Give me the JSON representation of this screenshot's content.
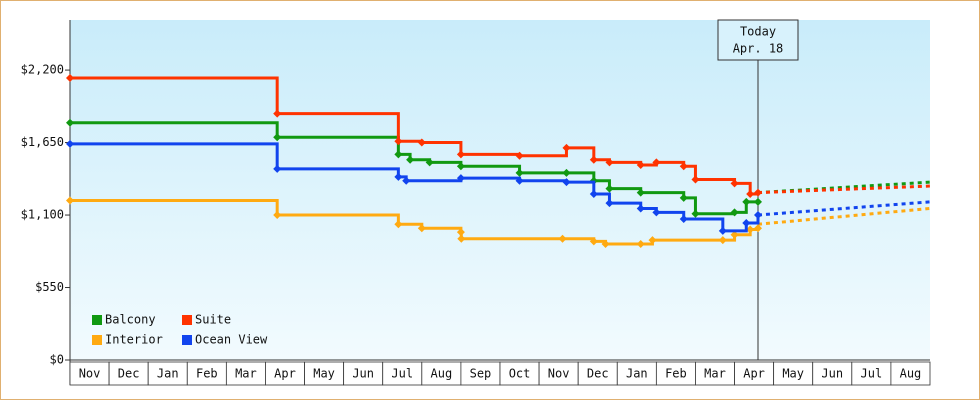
{
  "chart_data": {
    "type": "step-line",
    "categories": [
      "Nov",
      "Dec",
      "Jan",
      "Feb",
      "Mar",
      "Apr",
      "May",
      "Jun",
      "Jul",
      "Aug",
      "Sep",
      "Oct",
      "Nov",
      "Dec",
      "Jan",
      "Feb",
      "Mar",
      "Apr",
      "May",
      "Jun",
      "Jul",
      "Aug"
    ],
    "xlim": [
      0,
      22
    ],
    "ylim": [
      0,
      2580
    ],
    "yticks": [
      {
        "value": 0,
        "label": "$0"
      },
      {
        "value": 550,
        "label": "$550"
      },
      {
        "value": 1100,
        "label": "$1,100"
      },
      {
        "value": 1650,
        "label": "$1,650"
      },
      {
        "value": 2200,
        "label": "$2,200"
      }
    ],
    "legend": "lower left",
    "series": [
      {
        "name": "Balcony",
        "color": "#119911",
        "x": [
          0,
          5.3,
          8.4,
          8.7,
          9.2,
          10.0,
          11.5,
          12.7,
          13.4,
          13.8,
          14.6,
          15.7,
          16.0,
          17.0,
          17.3,
          17.6
        ],
        "values": [
          1800,
          1690,
          1560,
          1520,
          1500,
          1470,
          1420,
          1420,
          1360,
          1300,
          1270,
          1230,
          1110,
          1120,
          1200,
          1200
        ],
        "forecast_values": [
          1270,
          1350
        ]
      },
      {
        "name": "Suite",
        "color": "#ff3300",
        "x": [
          0,
          5.3,
          8.4,
          9.0,
          10.0,
          11.5,
          12.7,
          13.4,
          13.8,
          14.6,
          15.0,
          15.7,
          16.0,
          17.0,
          17.4,
          17.6
        ],
        "values": [
          2140,
          1870,
          1660,
          1650,
          1560,
          1550,
          1610,
          1520,
          1500,
          1480,
          1500,
          1470,
          1370,
          1340,
          1260,
          1270
        ],
        "forecast_values": [
          1270,
          1320
        ]
      },
      {
        "name": "Interior",
        "color": "#ffaa11",
        "x": [
          0,
          5.3,
          8.4,
          9.0,
          10.0,
          10.01,
          12.6,
          13.4,
          13.7,
          14.6,
          14.9,
          16.7,
          17.0,
          17.4,
          17.6
        ],
        "values": [
          1210,
          1100,
          1030,
          1000,
          970,
          920,
          920,
          900,
          880,
          880,
          910,
          910,
          950,
          990,
          1000
        ],
        "forecast_values": [
          1030,
          1150
        ]
      },
      {
        "name": "Ocean View",
        "color": "#1144ee",
        "x": [
          0,
          5.3,
          8.4,
          8.6,
          10.0,
          11.5,
          12.7,
          13.4,
          13.8,
          14.6,
          15.0,
          15.7,
          16.7,
          17.3,
          17.6
        ],
        "values": [
          1640,
          1450,
          1390,
          1360,
          1380,
          1360,
          1350,
          1260,
          1190,
          1150,
          1120,
          1070,
          980,
          1040,
          1100
        ],
        "forecast_values": [
          1100,
          1200
        ]
      }
    ],
    "forecast_x": [
      17.6,
      22
    ],
    "annotation": {
      "x": 17.6,
      "lines": [
        "Today",
        "Apr. 18"
      ]
    }
  }
}
